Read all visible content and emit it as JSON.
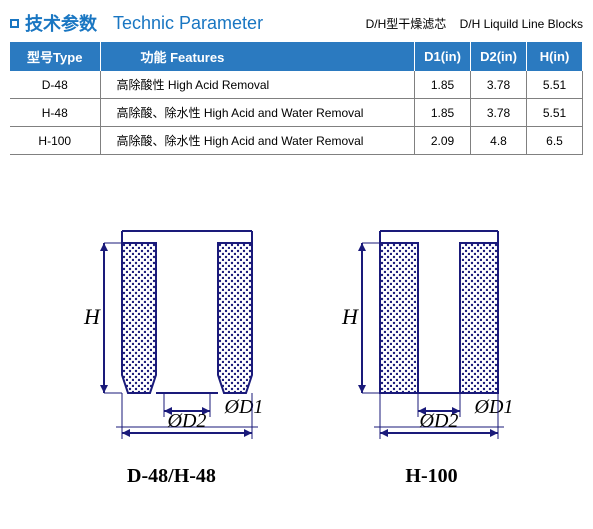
{
  "colors": {
    "accent": "#1976c2",
    "header_bg": "#2b7ac0",
    "row_border": "#808080",
    "text": "#000000"
  },
  "header": {
    "title_cn": "技术参数",
    "title_en": "Technic  Parameter",
    "sub_cn": "D/H型干燥滤芯",
    "sub_en": "D/H Liquild Line Blocks"
  },
  "table": {
    "headers": {
      "type": "型号Type",
      "features": "功能  Features",
      "d1": "D1(in)",
      "d2": "D2(in)",
      "h": "H(in)"
    },
    "rows": [
      {
        "type": "D-48",
        "features": "高除酸性  High Acid Removal",
        "d1": "1.85",
        "d2": "3.78",
        "h": "5.51"
      },
      {
        "type": "H-48",
        "features": "高除酸、除水性  High Acid  and Water Removal",
        "d1": "1.85",
        "d2": "3.78",
        "h": "5.51"
      },
      {
        "type": "H-100",
        "features": "高除酸、除水性  High Acid  and Water Removal",
        "d1": "2.09",
        "d2": "4.8",
        "h": "6.5"
      }
    ]
  },
  "diagrams": {
    "left_label": "D-48/H-48",
    "right_label": "H-100",
    "dim_h": "H",
    "dim_d1": "ØD1",
    "dim_d2": "ØD2",
    "stroke": "#1a1a7a",
    "stroke_width": 2
  }
}
